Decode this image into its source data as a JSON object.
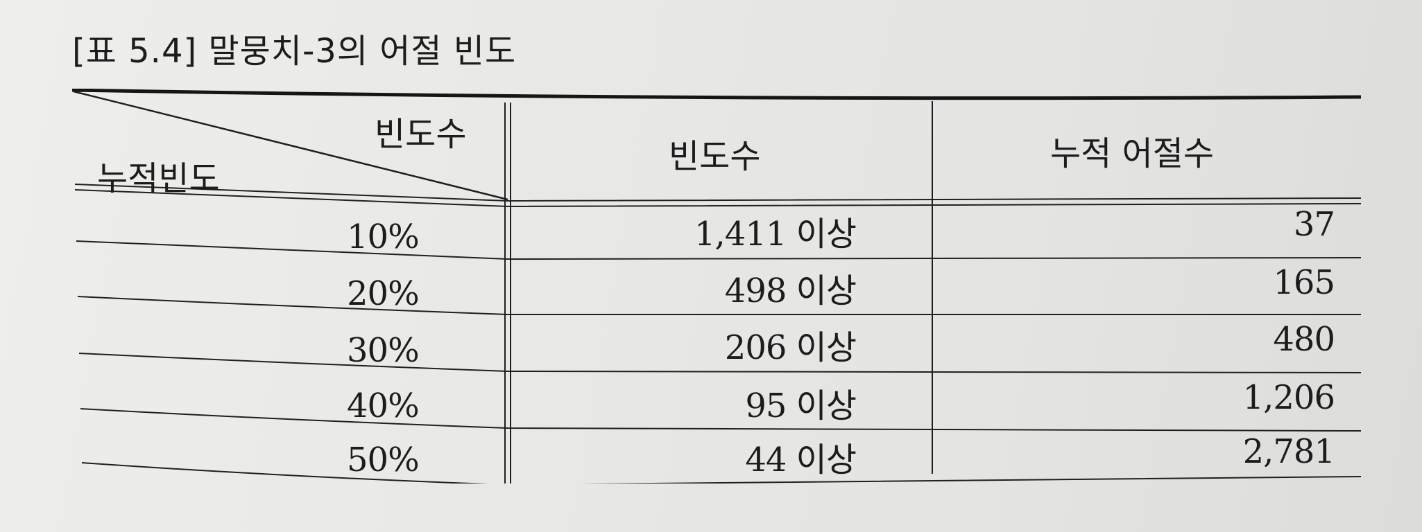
{
  "caption": {
    "label": "[표 5.4]",
    "title": "말뭉치-3의 어절 빈도"
  },
  "table": {
    "corner_top": "빈도수",
    "corner_bottom": "누적빈도",
    "col_freq_header": "빈도수",
    "col_cum_header": "누적 어절수",
    "rows": [
      {
        "pct": "10%",
        "freq": "1,411 이상",
        "cum": "37"
      },
      {
        "pct": "20%",
        "freq": "498 이상",
        "cum": "165"
      },
      {
        "pct": "30%",
        "freq": "206 이상",
        "cum": "480"
      },
      {
        "pct": "40%",
        "freq": "95 이상",
        "cum": "1,206"
      },
      {
        "pct": "50%",
        "freq": "44 이상",
        "cum": "2,781"
      }
    ]
  }
}
